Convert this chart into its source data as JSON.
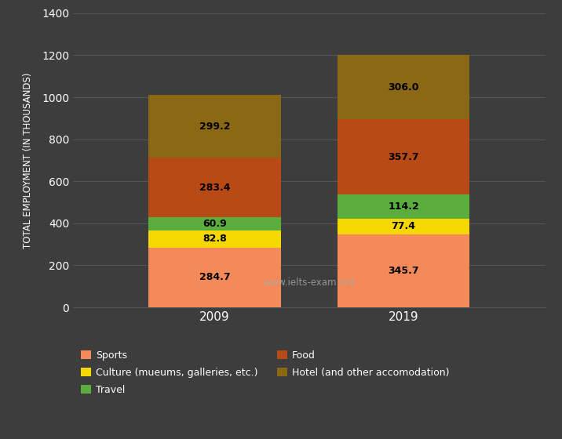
{
  "years": [
    "2009",
    "2019"
  ],
  "categories": [
    "Sports",
    "Culture (mueums, galleries, etc.)",
    "Travel",
    "Food",
    "Hotel (and other accomodation)"
  ],
  "values": {
    "Sports": [
      284.7,
      345.7
    ],
    "Culture (mueums, galleries, etc.)": [
      82.8,
      77.4
    ],
    "Travel": [
      60.9,
      114.2
    ],
    "Food": [
      283.4,
      357.7
    ],
    "Hotel (and other accomodation)": [
      299.2,
      306.0
    ]
  },
  "colors": {
    "Sports": "#F4895A",
    "Culture (mueums, galleries, etc.)": "#F5D800",
    "Travel": "#5BAD3E",
    "Food": "#B84A15",
    "Hotel (and other accomodation)": "#8B6914"
  },
  "ylabel": "TOTAL EMPLOYMENT (IN THOUSANDS)",
  "ylim": [
    0,
    1400
  ],
  "yticks": [
    0,
    200,
    400,
    600,
    800,
    1000,
    1200,
    1400
  ],
  "background_color": "#3d3d3d",
  "text_color": "#ffffff",
  "grid_color": "#555555",
  "watermark": "www.ielts-exam.net",
  "bar_width": 0.28,
  "label_color": "#000000",
  "label_fontsize": 9
}
